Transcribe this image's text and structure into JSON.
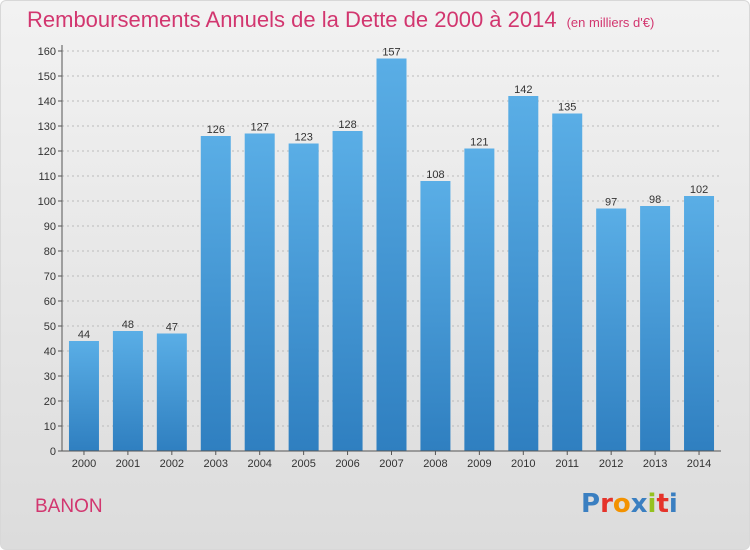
{
  "header": {
    "title": "Remboursements Annuels de la Dette de 2000 à 2014",
    "unit": "(en milliers d'€)"
  },
  "commune": "BANON",
  "logo": {
    "text": "Proxiti",
    "colors": [
      "#3a7fc1",
      "#e5332a",
      "#f39200",
      "#3a7fc1",
      "#95c11f",
      "#e5332a",
      "#3a7fc1"
    ]
  },
  "colors": {
    "title": "#d2366f",
    "bar_top": "#5aaee6",
    "bar_bottom": "#2f7fc0",
    "axis": "#555555",
    "grid": "#bbbbbb"
  },
  "chart_data": {
    "type": "bar",
    "title": "Remboursements Annuels de la Dette de 2000 à 2014",
    "xlabel": "",
    "ylabel": "",
    "ylim": [
      0,
      160
    ],
    "ytick_step": 10,
    "grid": true,
    "categories": [
      "2000",
      "2001",
      "2002",
      "2003",
      "2004",
      "2005",
      "2006",
      "2007",
      "2008",
      "2009",
      "2010",
      "2011",
      "2012",
      "2013",
      "2014"
    ],
    "values": [
      44,
      48,
      47,
      126,
      127,
      123,
      128,
      157,
      108,
      121,
      142,
      135,
      97,
      98,
      102
    ]
  }
}
